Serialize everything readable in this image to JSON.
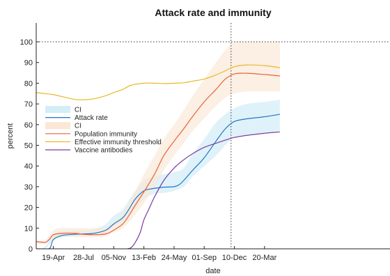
{
  "chart_data": {
    "type": "line",
    "title": "Attack rate and immunity",
    "xlabel": "date",
    "ylabel": "percent",
    "ylim": [
      0,
      100
    ],
    "yticks": [
      0,
      10,
      20,
      30,
      40,
      50,
      60,
      70,
      80,
      90,
      100
    ],
    "xlim": [
      "2020-02-22",
      "2023-05-10"
    ],
    "xticks": [
      {
        "date": "2020-04-19",
        "label": "19-Apr"
      },
      {
        "date": "2020-07-28",
        "label": "28-Jul"
      },
      {
        "date": "2020-11-05",
        "label": "05-Nov"
      },
      {
        "date": "2021-02-13",
        "label": "13-Feb"
      },
      {
        "date": "2021-05-24",
        "label": "24-May"
      },
      {
        "date": "2021-09-01",
        "label": "01-Sep"
      },
      {
        "date": "2021-12-10",
        "label": "10-Dec"
      },
      {
        "date": "2022-03-20",
        "label": "20-Mar"
      }
    ],
    "reference_lines": [
      {
        "orientation": "horizontal",
        "y": 100,
        "style": "dotted"
      },
      {
        "orientation": "vertical",
        "x": "2021-11-29",
        "style": "dotted"
      }
    ],
    "legend": {
      "placement": "left-center"
    },
    "colors": {
      "attack": "#1f77c4",
      "attack_band": "#d4eef8",
      "population": "#e8623a",
      "population_band": "#fbe7d6",
      "threshold": "#e8b828",
      "vaccine": "#7b3aa0"
    },
    "bands": [
      {
        "name": "CI",
        "series": "Attack rate",
        "x": [
          "2020-02-22",
          "2020-03-21",
          "2020-04-19",
          "2020-05-19",
          "2020-06-28",
          "2020-07-28",
          "2020-09-01",
          "2020-10-10",
          "2020-11-05",
          "2020-12-05",
          "2021-01-01",
          "2021-02-13",
          "2021-03-20",
          "2021-04-20",
          "2021-05-24",
          "2021-06-25",
          "2021-07-25",
          "2021-09-01",
          "2021-10-10",
          "2021-11-10",
          "2021-12-10",
          "2022-01-20",
          "2022-03-20",
          "2022-05-10"
        ],
        "lower": [
          0,
          0,
          4,
          5.5,
          6,
          6.3,
          6.5,
          8,
          11,
          13,
          17,
          24,
          26.5,
          27,
          28,
          30,
          35,
          40,
          45,
          50,
          54,
          55,
          56,
          57
        ],
        "upper": [
          0,
          1,
          7,
          8.5,
          9,
          9,
          9.5,
          12,
          16,
          19,
          25,
          33,
          35,
          36,
          37,
          39,
          46,
          53,
          61,
          65,
          68,
          70,
          71,
          72
        ]
      },
      {
        "name": "CI",
        "series": "Population immunity",
        "x": [
          "2020-02-22",
          "2020-03-21",
          "2020-04-19",
          "2020-05-19",
          "2020-07-28",
          "2020-09-01",
          "2020-10-10",
          "2020-11-05",
          "2020-12-05",
          "2021-01-01",
          "2021-02-13",
          "2021-03-20",
          "2021-04-20",
          "2021-05-24",
          "2021-06-25",
          "2021-07-25",
          "2021-09-01",
          "2021-10-10",
          "2021-11-10",
          "2021-12-10",
          "2022-01-20",
          "2022-03-20",
          "2022-05-10"
        ],
        "lower": [
          2.5,
          2.5,
          5,
          6,
          5.5,
          5.5,
          6,
          8,
          10,
          14,
          22,
          30,
          38,
          45,
          51,
          57,
          63,
          69,
          73,
          75,
          76,
          76,
          76
        ],
        "upper": [
          4,
          4,
          9,
          10,
          10,
          10,
          10.5,
          13,
          17,
          24,
          36,
          45,
          53,
          60,
          67,
          74,
          82,
          90,
          96,
          100,
          100,
          100,
          100
        ]
      }
    ],
    "series": [
      {
        "name": "Attack rate",
        "x": [
          "2020-02-22",
          "2020-03-21",
          "2020-04-08",
          "2020-04-19",
          "2020-05-19",
          "2020-06-28",
          "2020-07-28",
          "2020-09-01",
          "2020-10-10",
          "2020-11-05",
          "2020-12-05",
          "2020-12-25",
          "2021-01-15",
          "2021-02-13",
          "2021-03-10",
          "2021-04-05",
          "2021-04-20",
          "2021-05-24",
          "2021-06-10",
          "2021-06-25",
          "2021-07-25",
          "2021-09-01",
          "2021-10-10",
          "2021-11-10",
          "2021-12-10",
          "2022-01-20",
          "2022-03-20",
          "2022-05-10"
        ],
        "y": [
          0,
          0,
          0.4,
          4.5,
          6.5,
          7,
          7.2,
          7.5,
          9,
          12,
          15,
          19,
          24,
          28,
          29,
          29.5,
          29.8,
          30,
          31,
          33,
          38,
          44,
          52,
          58,
          61.5,
          62.8,
          63.8,
          65
        ]
      },
      {
        "name": "Population immunity",
        "x": [
          "2020-02-22",
          "2020-03-15",
          "2020-03-26",
          "2020-04-08",
          "2020-04-19",
          "2020-05-19",
          "2020-06-28",
          "2020-07-28",
          "2020-09-01",
          "2020-10-10",
          "2020-11-05",
          "2020-12-05",
          "2020-12-25",
          "2021-01-15",
          "2021-02-13",
          "2021-03-20",
          "2021-04-20",
          "2021-05-24",
          "2021-06-25",
          "2021-07-25",
          "2021-09-01",
          "2021-10-10",
          "2021-11-10",
          "2021-12-10",
          "2022-01-20",
          "2022-03-20",
          "2022-05-10"
        ],
        "y": [
          3.5,
          3.2,
          3.2,
          5,
          6.8,
          7.5,
          7.5,
          7,
          6.8,
          7.2,
          9,
          12,
          16,
          21,
          27.5,
          36,
          45,
          52,
          58,
          64,
          71,
          77,
          82,
          84.5,
          84.8,
          84.2,
          83.5
        ]
      },
      {
        "name": "Effective immunity threshold",
        "x": [
          "2020-02-22",
          "2020-03-21",
          "2020-04-19",
          "2020-05-19",
          "2020-06-28",
          "2020-07-28",
          "2020-09-01",
          "2020-10-10",
          "2020-11-05",
          "2020-12-05",
          "2021-01-01",
          "2021-02-13",
          "2021-03-20",
          "2021-04-20",
          "2021-05-24",
          "2021-06-25",
          "2021-07-25",
          "2021-09-01",
          "2021-10-10",
          "2021-11-10",
          "2021-12-10",
          "2022-01-20",
          "2022-03-20",
          "2022-05-10"
        ],
        "y": [
          75.5,
          75,
          74.5,
          73.5,
          72.2,
          72,
          72.5,
          74,
          75.5,
          77,
          79,
          80,
          80,
          79.8,
          80,
          80.2,
          81,
          82,
          84,
          86,
          88,
          88.8,
          88.5,
          87.5
        ]
      },
      {
        "name": "Vaccine antibodies",
        "x": [
          "2020-12-20",
          "2021-01-01",
          "2021-01-15",
          "2021-02-01",
          "2021-02-13",
          "2021-03-01",
          "2021-03-20",
          "2021-04-20",
          "2021-05-24",
          "2021-06-25",
          "2021-07-25",
          "2021-09-01",
          "2021-10-10",
          "2021-11-10",
          "2021-12-10",
          "2022-01-20",
          "2022-03-20",
          "2022-05-10"
        ],
        "y": [
          0,
          0.5,
          3,
          8,
          14,
          19,
          25,
          33,
          39,
          43,
          46,
          49,
          51,
          52.5,
          53.8,
          54.8,
          55.8,
          56.5
        ]
      }
    ]
  }
}
